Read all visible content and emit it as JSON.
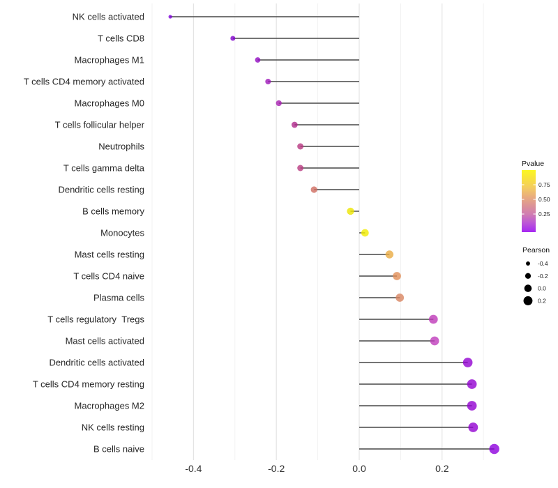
{
  "chart_data": {
    "type": "lollipop",
    "title": "",
    "xlabel": "",
    "ylabel": "",
    "background_color": "#ffffff",
    "grid": "vertical-only",
    "grid_major_color": "#e2e2e2",
    "grid_minor_color": "#f0f0f0",
    "stem_color": "#474747",
    "point_opacity": 0.8,
    "xlim": [
      -0.51,
      0.36
    ],
    "x_major_ticks": [
      -0.4,
      -0.2,
      0,
      0.2
    ],
    "x_tick_labels": [
      "-0.4",
      "-0.2",
      "0.0",
      "0.2"
    ],
    "x_minor_ticks": [
      -0.5,
      -0.3,
      -0.1,
      0.1,
      0.3
    ],
    "points": [
      {
        "label": "NK cells activated",
        "value": -0.456,
        "color": "#7d00d8"
      },
      {
        "label": "T cells CD8",
        "value": -0.305,
        "color": "#8000cc"
      },
      {
        "label": "Macrophages M1",
        "value": -0.245,
        "color": "#920dc2"
      },
      {
        "label": "T cells CD4 memory activated",
        "value": -0.22,
        "color": "#9e17b9"
      },
      {
        "label": "Macrophages M0",
        "value": -0.194,
        "color": "#a61fb0"
      },
      {
        "label": "T cells follicular helper",
        "value": -0.156,
        "color": "#af288b"
      },
      {
        "label": "Neutrophils",
        "value": -0.142,
        "color": "#b83781"
      },
      {
        "label": "T cells gamma delta",
        "value": -0.142,
        "color": "#b93b81"
      },
      {
        "label": "Dendritic cells resting",
        "value": -0.109,
        "color": "#d06d60"
      },
      {
        "label": "B cells memory",
        "value": -0.021,
        "color": "#ece500"
      },
      {
        "label": "Monocytes",
        "value": 0.014,
        "color": "#f1ec00"
      },
      {
        "label": "Mast cells resting",
        "value": 0.073,
        "color": "#eaab42"
      },
      {
        "label": "T cells CD4 naive",
        "value": 0.091,
        "color": "#e18d56"
      },
      {
        "label": "Plasma cells",
        "value": 0.098,
        "color": "#d88560"
      },
      {
        "label": "T cells regulatory  Tregs",
        "value": 0.179,
        "color": "#be38b8"
      },
      {
        "label": "Mast cells activated",
        "value": 0.182,
        "color": "#bf3cbb"
      },
      {
        "label": "Dendritic cells activated",
        "value": 0.262,
        "color": "#9201d1"
      },
      {
        "label": "T cells CD4 memory resting",
        "value": 0.272,
        "color": "#9201d1"
      },
      {
        "label": "Macrophages M2",
        "value": 0.272,
        "color": "#9201d1"
      },
      {
        "label": "NK cells resting",
        "value": 0.275,
        "color": "#9201d1"
      },
      {
        "label": "B cells naive",
        "value": 0.326,
        "color": "#8d00dd"
      }
    ],
    "legends": {
      "pvalue": {
        "title": "Pvalue",
        "ticks": [
          {
            "label": "0.75",
            "value": 0.75
          },
          {
            "label": "0.50",
            "value": 0.5
          },
          {
            "label": "0.25",
            "value": 0.25
          }
        ],
        "gradient_top_to_bottom": [
          "#fbf722",
          "#f8e13e",
          "#f3cb62",
          "#e9ad7e",
          "#dc9397",
          "#d07cb2",
          "#bb55d8",
          "#a527f2"
        ]
      },
      "pearson": {
        "title": "Pearson",
        "items": [
          {
            "label": "-0.4",
            "value": -0.4
          },
          {
            "label": "-0.2",
            "value": -0.2
          },
          {
            "label": "0.0",
            "value": 0.0
          },
          {
            "label": "0.2",
            "value": 0.2
          }
        ],
        "dot_color": "#000000"
      }
    }
  }
}
